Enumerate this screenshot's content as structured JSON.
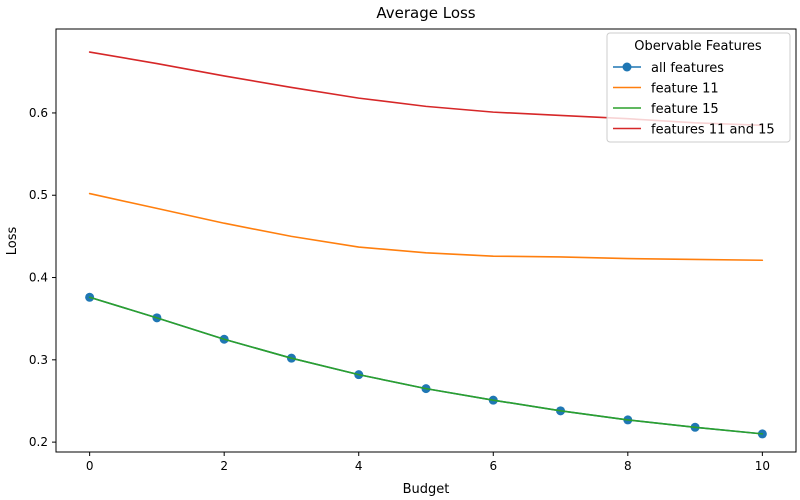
{
  "chart_data": {
    "type": "line",
    "title": "Average Loss",
    "xlabel": "Budget",
    "ylabel": "Loss",
    "xlim": [
      -0.5,
      10.5
    ],
    "ylim": [
      0.188,
      0.702
    ],
    "x_ticks": [
      0,
      2,
      4,
      6,
      8,
      10
    ],
    "y_ticks": [
      0.2,
      0.3,
      0.4,
      0.5,
      0.6
    ],
    "grid": false,
    "legend": {
      "title": "Obervable Features",
      "placement": "top-right"
    },
    "x": [
      0,
      1,
      2,
      3,
      4,
      5,
      6,
      7,
      8,
      9,
      10
    ],
    "series": [
      {
        "name": "all features",
        "color": "#1f77b4",
        "marker": "circle",
        "values": [
          0.376,
          0.351,
          0.325,
          0.302,
          0.282,
          0.265,
          0.251,
          0.238,
          0.227,
          0.218,
          0.21
        ]
      },
      {
        "name": "feature 11",
        "color": "#ff7f0e",
        "marker": "none",
        "values": [
          0.502,
          0.484,
          0.466,
          0.45,
          0.437,
          0.43,
          0.426,
          0.425,
          0.423,
          0.422,
          0.421
        ]
      },
      {
        "name": "feature 15",
        "color": "#2ca02c",
        "marker": "none",
        "values": [
          0.376,
          0.351,
          0.325,
          0.302,
          0.282,
          0.265,
          0.251,
          0.238,
          0.227,
          0.218,
          0.21
        ]
      },
      {
        "name": "features 11 and 15",
        "color": "#d62728",
        "marker": "none",
        "values": [
          0.674,
          0.66,
          0.645,
          0.631,
          0.618,
          0.608,
          0.601,
          0.597,
          0.593,
          0.588,
          0.585
        ]
      }
    ]
  }
}
